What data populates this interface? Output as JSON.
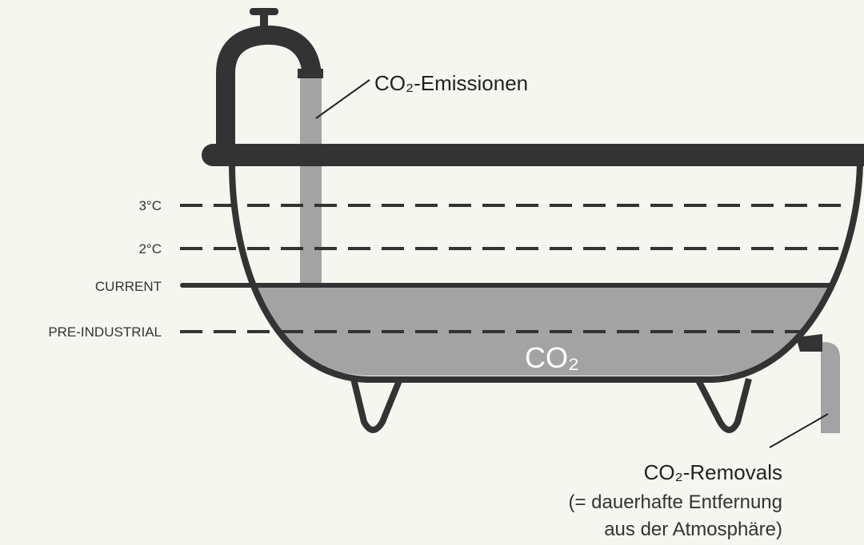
{
  "levels": [
    {
      "label": "3°C"
    },
    {
      "label": "2°C"
    },
    {
      "label": "CURRENT"
    },
    {
      "label": "PRE-INDUSTRIAL"
    }
  ],
  "emissions": {
    "label": "CO₂-Emissionen"
  },
  "tub": {
    "label": "CO₂"
  },
  "removals": {
    "label": "CO₂-Removals",
    "note": [
      "(= dauerhafte Entfernung",
      "aus der Atmosphäre)"
    ]
  }
}
